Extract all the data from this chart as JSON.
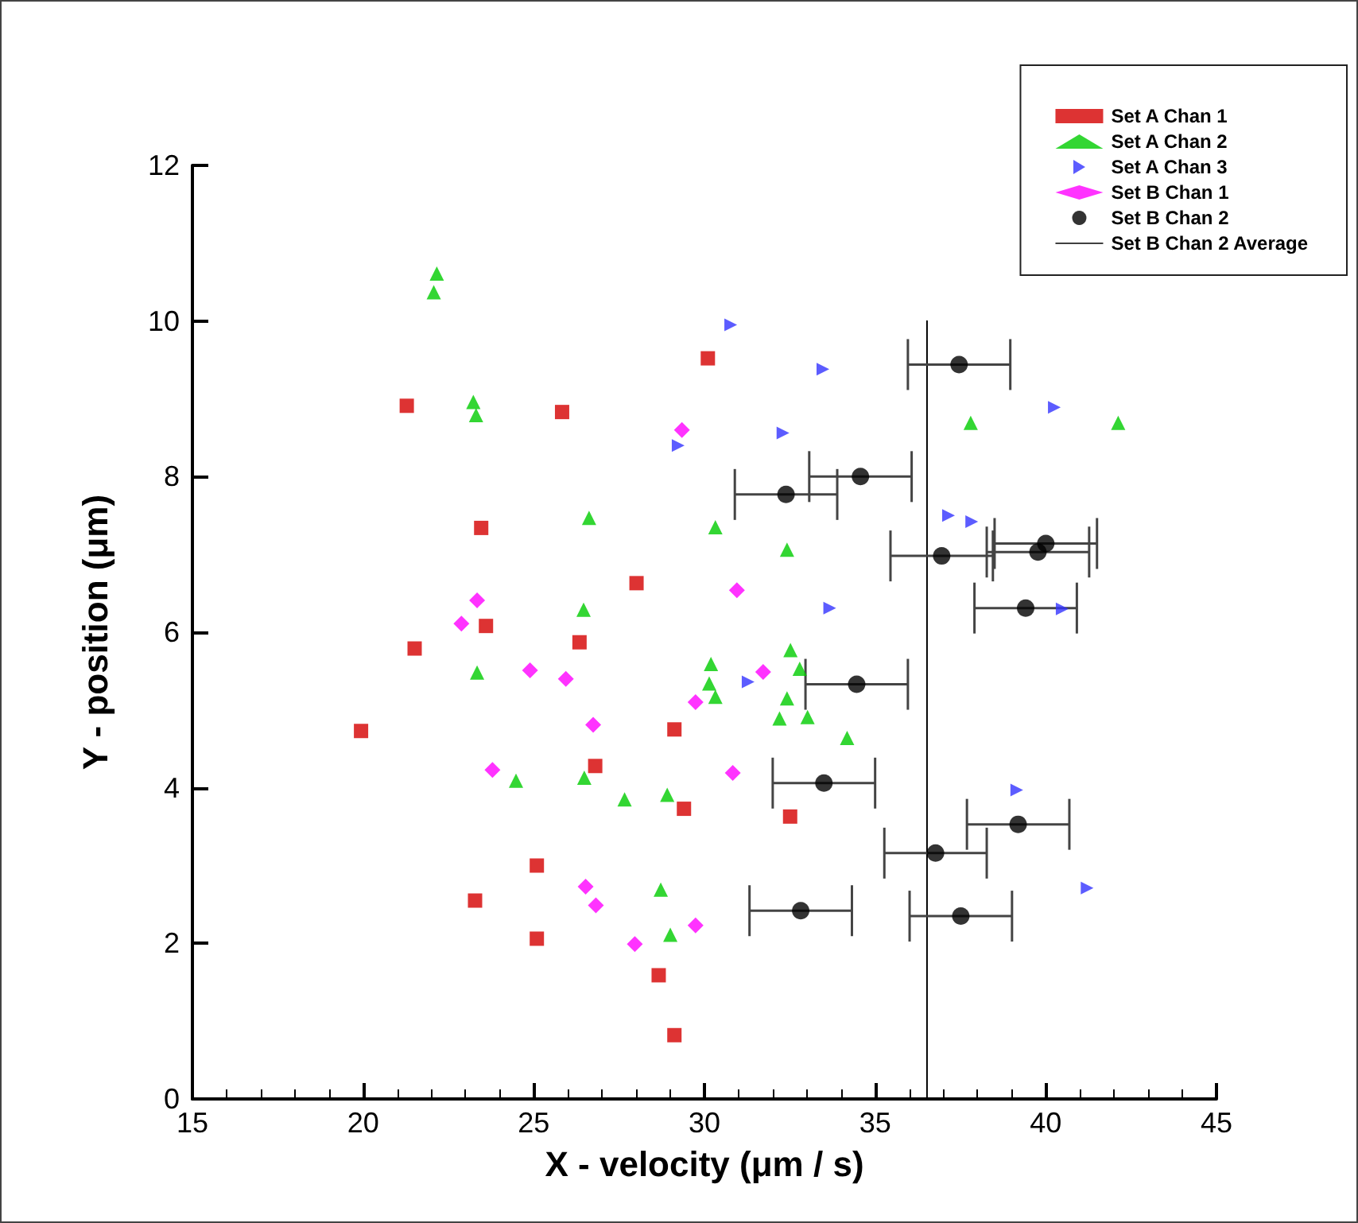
{
  "chart_data": {
    "type": "scatter",
    "xlabel": "X - velocity (μm / s)",
    "ylabel": "Y - position (μm)",
    "xlim": [
      15,
      45
    ],
    "xticks": [
      15,
      20,
      25,
      30,
      35,
      40,
      45
    ],
    "ylim": [
      0,
      12
    ],
    "yticks": [
      0,
      2,
      4,
      6,
      8,
      10,
      12
    ],
    "grid": false,
    "legend": "top right",
    "series": [
      {
        "name": "Set A Chan 1",
        "color": "#d40000",
        "marker": "square",
        "x": [
          21.28,
          25.83,
          23.46,
          28.01,
          23.6,
          21.51,
          26.34,
          30.1,
          19.94,
          29.12,
          26.8,
          29.4,
          25.09,
          23.28,
          25.09,
          28.66,
          29.12,
          32.51
        ],
        "values": [
          8.91,
          8.83,
          7.34,
          6.63,
          6.08,
          5.79,
          5.87,
          9.52,
          4.73,
          4.75,
          4.28,
          3.73,
          3.0,
          2.55,
          2.06,
          1.59,
          0.82,
          3.63
        ]
      },
      {
        "name": "Set A Chan 2",
        "color": "#00cc00",
        "marker": "triangle",
        "x": [
          22.16,
          22.07,
          23.23,
          23.31,
          26.62,
          30.32,
          26.46,
          30.19,
          23.34,
          30.14,
          30.32,
          24.48,
          26.48,
          27.66,
          28.91,
          28.72,
          29.0,
          32.2,
          37.8,
          42.12,
          32.42,
          32.52,
          32.79,
          32.42,
          33.02,
          34.18
        ],
        "values": [
          10.61,
          10.37,
          8.96,
          8.79,
          7.47,
          7.35,
          6.29,
          5.59,
          5.48,
          5.34,
          5.17,
          4.09,
          4.13,
          3.85,
          3.91,
          2.69,
          2.11,
          4.89,
          8.69,
          8.69,
          7.06,
          5.77,
          5.53,
          5.15,
          4.91,
          4.64
        ]
      },
      {
        "name": "Set A Chan 3",
        "color": "#3333ff",
        "marker": "triangle-right",
        "x": [
          30.77,
          29.23,
          33.47,
          32.3,
          40.25,
          37.15,
          37.83,
          33.67,
          40.48,
          31.28,
          39.15,
          41.21
        ],
        "values": [
          9.95,
          8.4,
          9.38,
          8.56,
          8.89,
          7.5,
          7.42,
          6.31,
          6.3,
          5.36,
          3.97,
          2.71
        ]
      },
      {
        "name": "Set B Chan 1",
        "color": "#ff00ff",
        "marker": "diamond",
        "x": [
          29.34,
          30.95,
          23.34,
          22.88,
          24.89,
          25.94,
          31.72,
          29.74,
          26.74,
          23.79,
          30.83,
          26.52,
          26.82,
          29.74,
          27.96
        ],
        "values": [
          8.6,
          6.54,
          6.41,
          6.11,
          5.51,
          5.4,
          5.49,
          5.1,
          4.81,
          4.23,
          4.19,
          2.73,
          2.49,
          2.23,
          1.99
        ]
      },
      {
        "name": "Set B Chan 2",
        "color": "#000000",
        "marker": "circle",
        "x": [
          37.46,
          34.57,
          32.39,
          36.95,
          40.0,
          39.77,
          39.41,
          34.46,
          33.5,
          39.19,
          36.77,
          32.82,
          37.51
        ],
        "values": [
          9.44,
          8.0,
          7.77,
          6.98,
          7.14,
          7.03,
          6.31,
          5.33,
          4.06,
          3.53,
          3.16,
          2.42,
          2.35
        ],
        "xerrors": [
          1.5,
          1.5,
          1.5,
          1.5,
          1.5,
          1.5,
          1.5,
          1.5,
          1.5,
          1.5,
          1.5,
          1.5,
          1.5
        ]
      },
      {
        "name": "Set B Chan 2 Average",
        "color": "#000000",
        "type": "line",
        "marker": "none",
        "line_style": "solid",
        "x": [
          36.52,
          36.52
        ],
        "values": [
          0,
          10
        ]
      }
    ]
  }
}
